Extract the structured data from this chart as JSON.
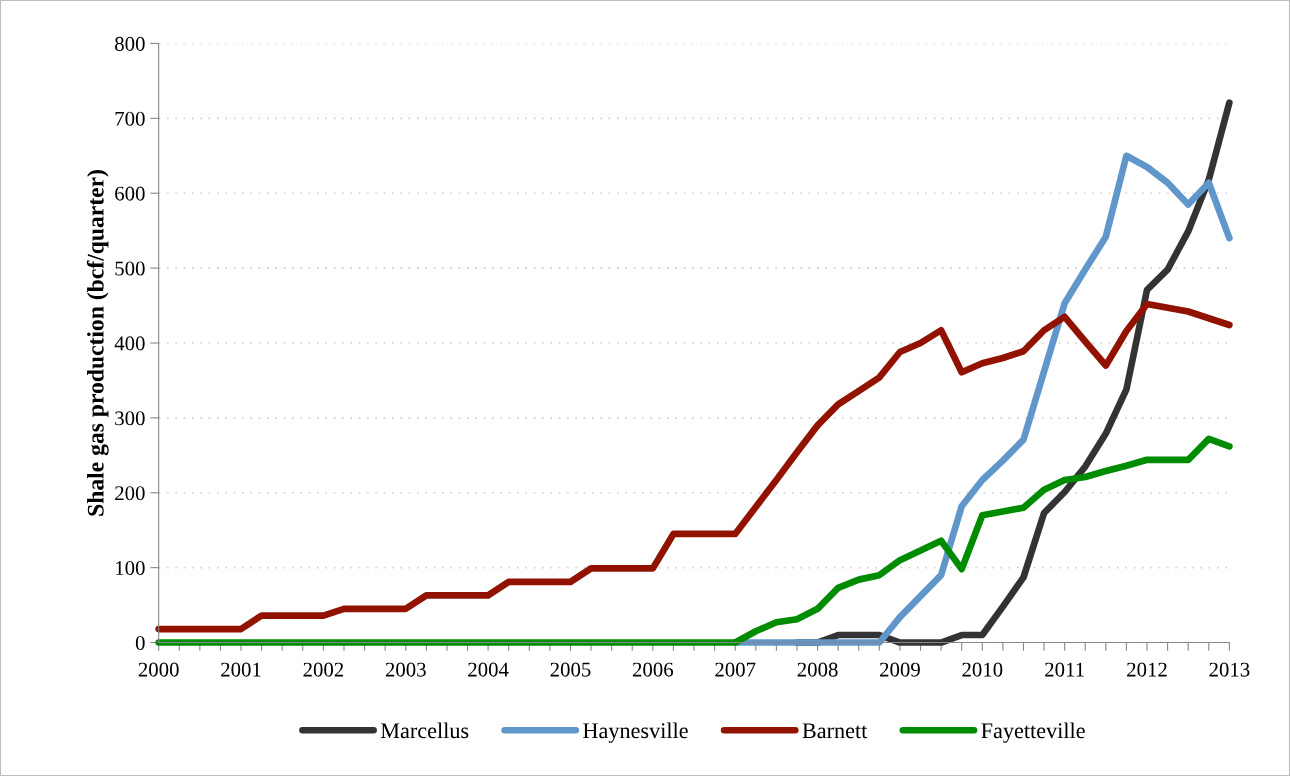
{
  "chart_data": {
    "type": "line",
    "ylabel": "Shale gas production (bcf/quarter)",
    "x": [
      2000,
      2000.25,
      2000.5,
      2000.75,
      2001,
      2001.25,
      2001.5,
      2001.75,
      2002,
      2002.25,
      2002.5,
      2002.75,
      2003,
      2003.25,
      2003.5,
      2003.75,
      2004,
      2004.25,
      2004.5,
      2004.75,
      2005,
      2005.25,
      2005.5,
      2005.75,
      2006,
      2006.25,
      2006.5,
      2006.75,
      2007,
      2007.25,
      2007.5,
      2007.75,
      2008,
      2008.25,
      2008.5,
      2008.75,
      2009,
      2009.25,
      2009.5,
      2009.75,
      2010,
      2010.25,
      2010.5,
      2010.75,
      2011,
      2011.25,
      2011.5,
      2011.75,
      2012,
      2012.25,
      2012.5,
      2012.75,
      2013
    ],
    "series": [
      {
        "name": "Marcellus",
        "color": "#333333",
        "values": [
          null,
          null,
          null,
          null,
          null,
          null,
          null,
          null,
          null,
          null,
          null,
          null,
          null,
          null,
          null,
          null,
          null,
          null,
          null,
          null,
          null,
          null,
          null,
          null,
          null,
          null,
          null,
          null,
          null,
          null,
          null,
          0,
          0,
          10,
          10,
          10,
          0,
          0,
          0,
          10,
          10,
          48,
          87,
          173,
          201,
          235,
          279,
          338,
          471,
          498,
          549,
          618,
          721
        ]
      },
      {
        "name": "Haynesville",
        "color": "#6196cb",
        "values": [
          null,
          null,
          null,
          null,
          null,
          null,
          null,
          null,
          null,
          null,
          null,
          null,
          null,
          null,
          null,
          null,
          null,
          null,
          null,
          null,
          null,
          null,
          null,
          null,
          null,
          null,
          null,
          null,
          0,
          0,
          0,
          0,
          0,
          0,
          0,
          0,
          34,
          62,
          90,
          182,
          217,
          243,
          271,
          362,
          453,
          498,
          542,
          650,
          635,
          614,
          585,
          614,
          540
        ]
      },
      {
        "name": "Barnett",
        "color": "#921200",
        "values": [
          18,
          18,
          18,
          18,
          18,
          36,
          36,
          36,
          36,
          45,
          45,
          45,
          45,
          63,
          63,
          63,
          63,
          81,
          81,
          81,
          81,
          99,
          99,
          99,
          99,
          145,
          145,
          145,
          145,
          181,
          217,
          254,
          290,
          318,
          336,
          354,
          388,
          400,
          417,
          361,
          373,
          380,
          389,
          417,
          435,
          402,
          370,
          416,
          452,
          447,
          442,
          433,
          424
        ]
      },
      {
        "name": "Fayetteville",
        "color": "#008c00",
        "values": [
          0,
          0,
          0,
          0,
          0,
          0,
          0,
          0,
          0,
          0,
          0,
          0,
          0,
          0,
          0,
          0,
          0,
          0,
          0,
          0,
          0,
          0,
          0,
          0,
          0,
          0,
          0,
          0,
          0,
          15,
          27,
          31,
          45,
          73,
          84,
          90,
          110,
          123,
          136,
          98,
          170,
          175,
          180,
          204,
          217,
          221,
          229,
          236,
          244,
          244,
          244,
          272,
          262
        ]
      }
    ],
    "xlim": [
      2000,
      2013
    ],
    "xticks": [
      2000,
      {
        "value": 2000.25,
        "label": null
      },
      {
        "value": 2000.5,
        "label": null
      },
      {
        "value": 2000.75,
        "label": null
      },
      2001,
      {
        "value": 2001.25,
        "label": null
      },
      {
        "value": 2001.5,
        "label": null
      },
      {
        "value": 2001.75,
        "label": null
      },
      2002,
      {
        "value": 2002.25,
        "label": null
      },
      {
        "value": 2002.5,
        "label": null
      },
      {
        "value": 2002.75,
        "label": null
      },
      2003,
      {
        "value": 2003.25,
        "label": null
      },
      {
        "value": 2003.5,
        "label": null
      },
      {
        "value": 2003.75,
        "label": null
      },
      2004,
      {
        "value": 2004.25,
        "label": null
      },
      {
        "value": 2004.5,
        "label": null
      },
      {
        "value": 2004.75,
        "label": null
      },
      2005,
      {
        "value": 2005.25,
        "label": null
      },
      {
        "value": 2005.5,
        "label": null
      },
      {
        "value": 2005.75,
        "label": null
      },
      2006,
      {
        "value": 2006.25,
        "label": null
      },
      {
        "value": 2006.5,
        "label": null
      },
      {
        "value": 2006.75,
        "label": null
      },
      2007,
      {
        "value": 2007.25,
        "label": null
      },
      {
        "value": 2007.5,
        "label": null
      },
      {
        "value": 2007.75,
        "label": null
      },
      2008,
      {
        "value": 2008.25,
        "label": null
      },
      {
        "value": 2008.5,
        "label": null
      },
      {
        "value": 2008.75,
        "label": null
      },
      2009,
      {
        "value": 2009.25,
        "label": null
      },
      {
        "value": 2009.5,
        "label": null
      },
      {
        "value": 2009.75,
        "label": null
      },
      2010,
      {
        "value": 2010.25,
        "label": null
      },
      {
        "value": 2010.5,
        "label": null
      },
      {
        "value": 2010.75,
        "label": null
      },
      2011,
      {
        "value": 2011.25,
        "label": null
      },
      {
        "value": 2011.5,
        "label": null
      },
      {
        "value": 2011.75,
        "label": null
      },
      2012,
      {
        "value": 2012.25,
        "label": null
      },
      {
        "value": 2012.5,
        "label": null
      },
      {
        "value": 2012.75,
        "label": null
      },
      2013
    ],
    "ylim": [
      0,
      800
    ],
    "yticks": [
      0,
      100,
      200,
      300,
      400,
      500,
      600,
      700,
      800
    ],
    "grid": "y",
    "legend": "bottom",
    "marker": "none",
    "line_style": "solid"
  }
}
